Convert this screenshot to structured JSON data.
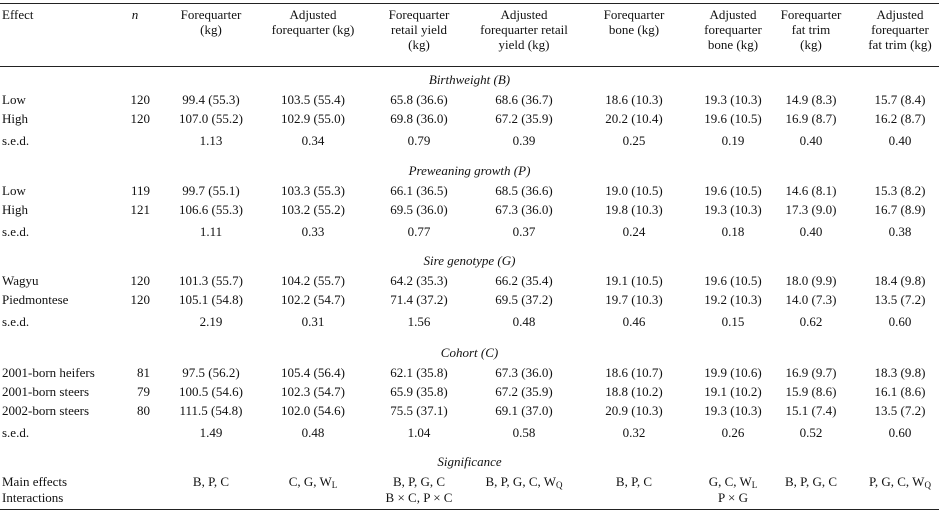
{
  "headers": {
    "effect": "Effect",
    "n": "n",
    "cols": [
      [
        "Forequarter",
        "(kg)"
      ],
      [
        "Adjusted",
        "forequarter (kg)"
      ],
      [
        "Forequarter",
        "retail yield",
        "(kg)"
      ],
      [
        "Adjusted",
        "forequarter retail",
        "yield (kg)"
      ],
      [
        "Forequarter",
        "bone (kg)"
      ],
      [
        "Adjusted",
        "forequarter",
        "bone (kg)"
      ],
      [
        "Forequarter",
        "fat trim",
        "(kg)"
      ],
      [
        "Adjusted",
        "forequarter",
        "fat trim (kg)"
      ]
    ]
  },
  "sections": [
    {
      "title": "Birthweight (B)",
      "rows": [
        {
          "label": "Low",
          "n": "120",
          "v": [
            "99.4 (55.3)",
            "103.5 (55.4)",
            "65.8 (36.6)",
            "68.6 (36.7)",
            "18.6 (10.3)",
            "19.3 (10.3)",
            "14.9 (8.3)",
            "15.7 (8.4)"
          ]
        },
        {
          "label": "High",
          "n": "120",
          "v": [
            "107.0 (55.2)",
            "102.9 (55.0)",
            "69.8 (36.0)",
            "67.2 (35.9)",
            "20.2 (10.4)",
            "19.6 (10.5)",
            "16.9 (8.7)",
            "16.2 (8.7)"
          ]
        }
      ],
      "sed": {
        "label": "s.e.d.",
        "v": [
          "1.13",
          "0.34",
          "0.79",
          "0.39",
          "0.25",
          "0.19",
          "0.40",
          "0.40"
        ]
      }
    },
    {
      "title": "Preweaning growth (P)",
      "rows": [
        {
          "label": "Low",
          "n": "119",
          "v": [
            "99.7 (55.1)",
            "103.3 (55.3)",
            "66.1 (36.5)",
            "68.5 (36.6)",
            "19.0 (10.5)",
            "19.6 (10.5)",
            "14.6 (8.1)",
            "15.3 (8.2)"
          ]
        },
        {
          "label": "High",
          "n": "121",
          "v": [
            "106.6 (55.3)",
            "103.2 (55.2)",
            "69.5 (36.0)",
            "67.3 (36.0)",
            "19.8 (10.3)",
            "19.3 (10.3)",
            "17.3 (9.0)",
            "16.7 (8.9)"
          ]
        }
      ],
      "sed": {
        "label": "s.e.d.",
        "v": [
          "1.11",
          "0.33",
          "0.77",
          "0.37",
          "0.24",
          "0.18",
          "0.40",
          "0.38"
        ]
      }
    },
    {
      "title": "Sire genotype (G)",
      "rows": [
        {
          "label": "Wagyu",
          "n": "120",
          "v": [
            "101.3 (55.7)",
            "104.2 (55.7)",
            "64.2 (35.3)",
            "66.2 (35.4)",
            "19.1 (10.5)",
            "19.6 (10.5)",
            "18.0 (9.9)",
            "18.4 (9.8)"
          ]
        },
        {
          "label": "Piedmontese",
          "n": "120",
          "v": [
            "105.1 (54.8)",
            "102.2 (54.7)",
            "71.4 (37.2)",
            "69.5 (37.2)",
            "19.7 (10.3)",
            "19.2 (10.3)",
            "14.0 (7.3)",
            "13.5 (7.2)"
          ]
        }
      ],
      "sed": {
        "label": "s.e.d.",
        "v": [
          "2.19",
          "0.31",
          "1.56",
          "0.48",
          "0.46",
          "0.15",
          "0.62",
          "0.60"
        ]
      }
    },
    {
      "title": "Cohort (C)",
      "rows": [
        {
          "label": "2001-born heifers",
          "n": "81",
          "v": [
            "97.5 (56.2)",
            "105.4 (56.4)",
            "62.1 (35.8)",
            "67.3 (36.0)",
            "18.6 (10.7)",
            "19.9 (10.6)",
            "16.9 (9.7)",
            "18.3 (9.8)"
          ]
        },
        {
          "label": "2001-born steers",
          "n": "79",
          "v": [
            "100.5 (54.6)",
            "102.3 (54.7)",
            "65.9 (35.8)",
            "67.2 (35.9)",
            "18.8 (10.2)",
            "19.1 (10.2)",
            "15.9 (8.6)",
            "16.1 (8.6)"
          ]
        },
        {
          "label": "2002-born steers",
          "n": "80",
          "v": [
            "111.5 (54.8)",
            "102.0 (54.6)",
            "75.5 (37.1)",
            "69.1 (37.0)",
            "20.9 (10.3)",
            "19.3 (10.3)",
            "15.1 (7.4)",
            "13.5 (7.2)"
          ]
        }
      ],
      "sed": {
        "label": "s.e.d.",
        "v": [
          "1.49",
          "0.48",
          "1.04",
          "0.58",
          "0.32",
          "0.26",
          "0.52",
          "0.60"
        ]
      }
    }
  ],
  "significance": {
    "title": "Significance",
    "main_label": "Main effects",
    "interactions_label": "Interactions",
    "main": [
      {
        "text": "B, P, C",
        "sub": ""
      },
      {
        "text": "C, G, W",
        "sub": "L"
      },
      {
        "text": "B, P, G, C",
        "sub": ""
      },
      {
        "text": "B, P, G, C, W",
        "sub": "Q"
      },
      {
        "text": "B, P, C",
        "sub": ""
      },
      {
        "text": "G, C, W",
        "sub": "L"
      },
      {
        "text": "B, P, G, C",
        "sub": ""
      },
      {
        "text": "P, G, C, W",
        "sub": "Q"
      }
    ],
    "interactions": [
      "",
      "",
      "B × C, P × C",
      "",
      "",
      "P × G",
      "",
      ""
    ]
  }
}
